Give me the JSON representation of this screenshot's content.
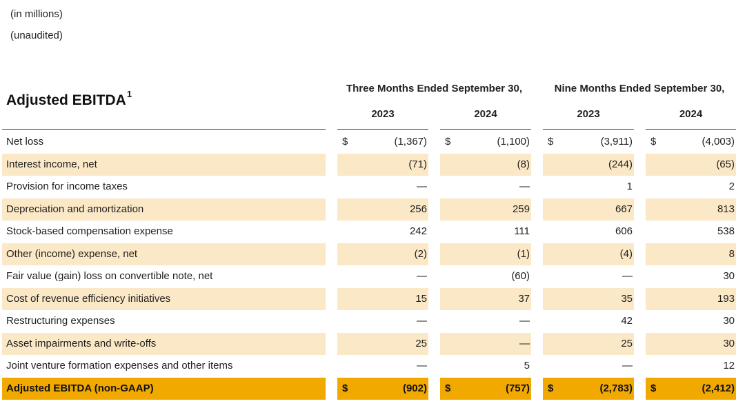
{
  "notes": {
    "units": "(in millions)",
    "audit": "(unaudited)"
  },
  "table": {
    "title": "Adjusted EBITDA",
    "title_footnote": "1",
    "group_three_months": "Three Months Ended September 30,",
    "group_nine_months": "Nine Months Ended September 30,",
    "years": [
      "2023",
      "2024",
      "2023",
      "2024"
    ],
    "currency": "$",
    "rows": [
      {
        "label": "Net loss",
        "values": [
          "(1,367)",
          "(1,100)",
          "(3,911)",
          "(4,003)"
        ]
      },
      {
        "label": "Interest income, net",
        "values": [
          "(71)",
          "(8)",
          "(244)",
          "(65)"
        ]
      },
      {
        "label": "Provision for income taxes",
        "values": [
          "—",
          "—",
          "1",
          "2"
        ]
      },
      {
        "label": "Depreciation and amortization",
        "values": [
          "256",
          "259",
          "667",
          "813"
        ]
      },
      {
        "label": "Stock-based compensation expense",
        "values": [
          "242",
          "111",
          "606",
          "538"
        ]
      },
      {
        "label": "Other (income) expense, net",
        "values": [
          "(2)",
          "(1)",
          "(4)",
          "8"
        ]
      },
      {
        "label": "Fair value (gain) loss on convertible note, net",
        "values": [
          "—",
          "(60)",
          "—",
          "30"
        ]
      },
      {
        "label": "Cost of revenue efficiency initiatives",
        "values": [
          "15",
          "37",
          "35",
          "193"
        ]
      },
      {
        "label": "Restructuring expenses",
        "values": [
          "—",
          "—",
          "42",
          "30"
        ]
      },
      {
        "label": "Asset impairments and write-offs",
        "values": [
          "25",
          "—",
          "25",
          "30"
        ]
      },
      {
        "label": "Joint venture formation expenses and other items",
        "values": [
          "—",
          "5",
          "—",
          "12"
        ]
      }
    ],
    "total": {
      "label": "Adjusted EBITDA (non-GAAP)",
      "values": [
        "(902)",
        "(757)",
        "(2,783)",
        "(2,412)"
      ]
    }
  }
}
